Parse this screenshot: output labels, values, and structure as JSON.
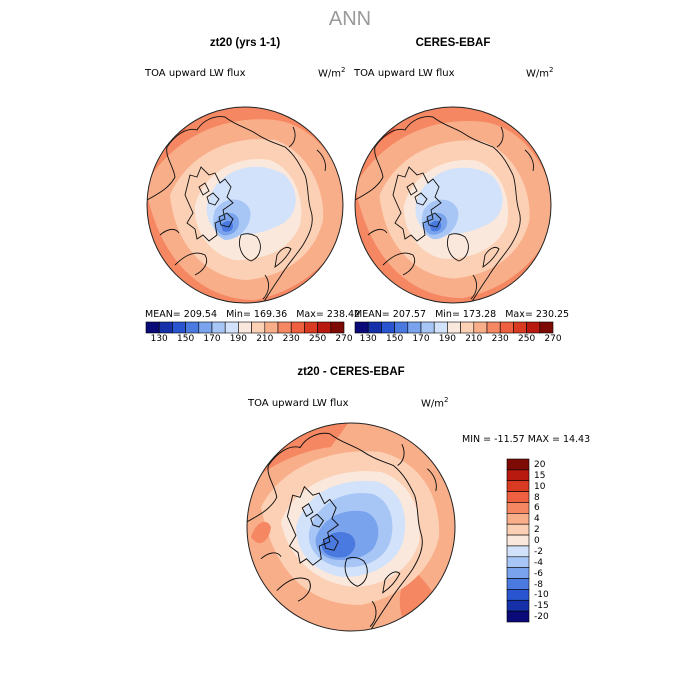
{
  "header": {
    "title": "ANN"
  },
  "panels": [
    {
      "title": "zt20 (yrs 1-1)",
      "variable": "TOA upward LW flux",
      "units_base": "W/m",
      "units_exp": "2",
      "stats": {
        "mean": "MEAN= 209.54",
        "min": "Min= 169.36",
        "max": "Max= 238.42"
      }
    },
    {
      "title": "CERES-EBAF",
      "variable": "TOA upward LW flux",
      "units_base": "W/m",
      "units_exp": "2",
      "stats": {
        "mean": "MEAN= 207.57",
        "min": "Min= 173.28",
        "max": "Max= 230.25"
      }
    },
    {
      "title": "zt20 - CERES-EBAF",
      "variable": "TOA upward LW flux",
      "units_base": "W/m",
      "units_exp": "2",
      "stats": {
        "minmax": "MIN = -11.57 MAX =  14.43"
      }
    }
  ],
  "abs_colorbar": {
    "labels": [
      "130",
      "150",
      "170",
      "190",
      "210",
      "230",
      "250",
      "270"
    ],
    "colors": [
      "#0a0a78",
      "#1530a8",
      "#2a55d0",
      "#4a7ae0",
      "#7aa3ee",
      "#a8c6f5",
      "#d2e2fa",
      "#fbe8dc",
      "#fcd0b5",
      "#f9ae8a",
      "#f58862",
      "#ee6040",
      "#d93a22",
      "#b81a10",
      "#7d0a05"
    ]
  },
  "diff_colorbar": {
    "labels": [
      "20",
      "15",
      "10",
      "8",
      "6",
      "4",
      "2",
      "0",
      "-2",
      "-4",
      "-6",
      "-8",
      "-10",
      "-15",
      "-20"
    ],
    "colors": [
      "#7d0a05",
      "#b81a10",
      "#d93a22",
      "#ee6040",
      "#f58862",
      "#f9ae8a",
      "#fcd0b5",
      "#fbe8dc",
      "#d2e2fa",
      "#a8c6f5",
      "#7aa3ee",
      "#4a7ae0",
      "#2a55d0",
      "#1530a8",
      "#0a0a78"
    ]
  }
}
